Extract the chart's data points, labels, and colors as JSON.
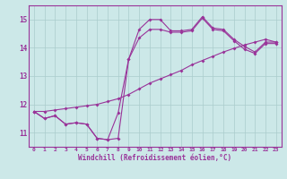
{
  "title": "",
  "xlabel": "Windchill (Refroidissement éolien,°C)",
  "ylabel": "",
  "background_color": "#cce8e8",
  "line_color": "#993399",
  "grid_color": "#aacccc",
  "xlim": [
    -0.5,
    23.5
  ],
  "ylim": [
    10.5,
    15.5
  ],
  "yticks": [
    11,
    12,
    13,
    14,
    15
  ],
  "xticks": [
    0,
    1,
    2,
    3,
    4,
    5,
    6,
    7,
    8,
    9,
    10,
    11,
    12,
    13,
    14,
    15,
    16,
    17,
    18,
    19,
    20,
    21,
    22,
    23
  ],
  "s1_y": [
    11.75,
    11.5,
    11.6,
    11.3,
    11.35,
    11.3,
    10.8,
    10.75,
    10.8,
    13.6,
    14.65,
    15.0,
    15.0,
    14.6,
    14.6,
    14.65,
    15.1,
    14.7,
    14.65,
    14.3,
    14.05,
    13.85,
    14.2,
    14.2
  ],
  "s2_y": [
    11.75,
    11.5,
    11.6,
    11.3,
    11.35,
    11.3,
    10.8,
    10.75,
    11.7,
    13.6,
    14.35,
    14.65,
    14.65,
    14.55,
    14.55,
    14.6,
    15.05,
    14.65,
    14.6,
    14.25,
    13.95,
    13.8,
    14.15,
    14.15
  ],
  "s3_y": [
    11.75,
    11.75,
    11.8,
    11.85,
    11.9,
    11.95,
    12.0,
    12.1,
    12.2,
    12.35,
    12.55,
    12.75,
    12.9,
    13.05,
    13.2,
    13.4,
    13.55,
    13.7,
    13.85,
    13.98,
    14.1,
    14.2,
    14.3,
    14.2
  ]
}
